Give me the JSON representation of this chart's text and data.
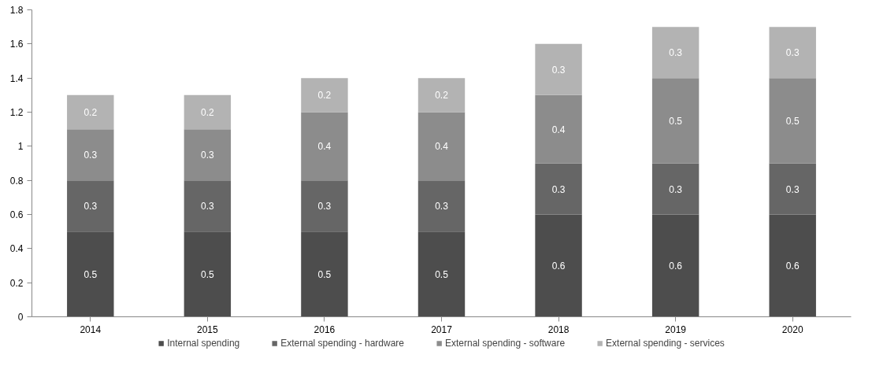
{
  "chart_data": {
    "type": "bar",
    "stacked": true,
    "categories": [
      "2014",
      "2015",
      "2016",
      "2017",
      "2018",
      "2019",
      "2020"
    ],
    "series": [
      {
        "name": "Internal spending",
        "color": "#4d4d4d",
        "values": [
          0.5,
          0.5,
          0.5,
          0.5,
          0.6,
          0.6,
          0.6
        ]
      },
      {
        "name": "External spending - hardware",
        "color": "#666666",
        "values": [
          0.3,
          0.3,
          0.3,
          0.3,
          0.3,
          0.3,
          0.3
        ]
      },
      {
        "name": "External spending - software",
        "color": "#8c8c8c",
        "values": [
          0.3,
          0.3,
          0.4,
          0.4,
          0.4,
          0.5,
          0.5
        ]
      },
      {
        "name": "External spending - services",
        "color": "#b3b3b3",
        "values": [
          0.2,
          0.2,
          0.2,
          0.2,
          0.3,
          0.3,
          0.3
        ]
      }
    ],
    "ylim": [
      0,
      1.8
    ],
    "yticks": [
      0,
      0.2,
      0.4,
      0.6,
      0.8,
      1,
      1.2,
      1.4,
      1.6,
      1.8
    ],
    "grid": false,
    "legend": "bottom",
    "data_labels": true
  }
}
